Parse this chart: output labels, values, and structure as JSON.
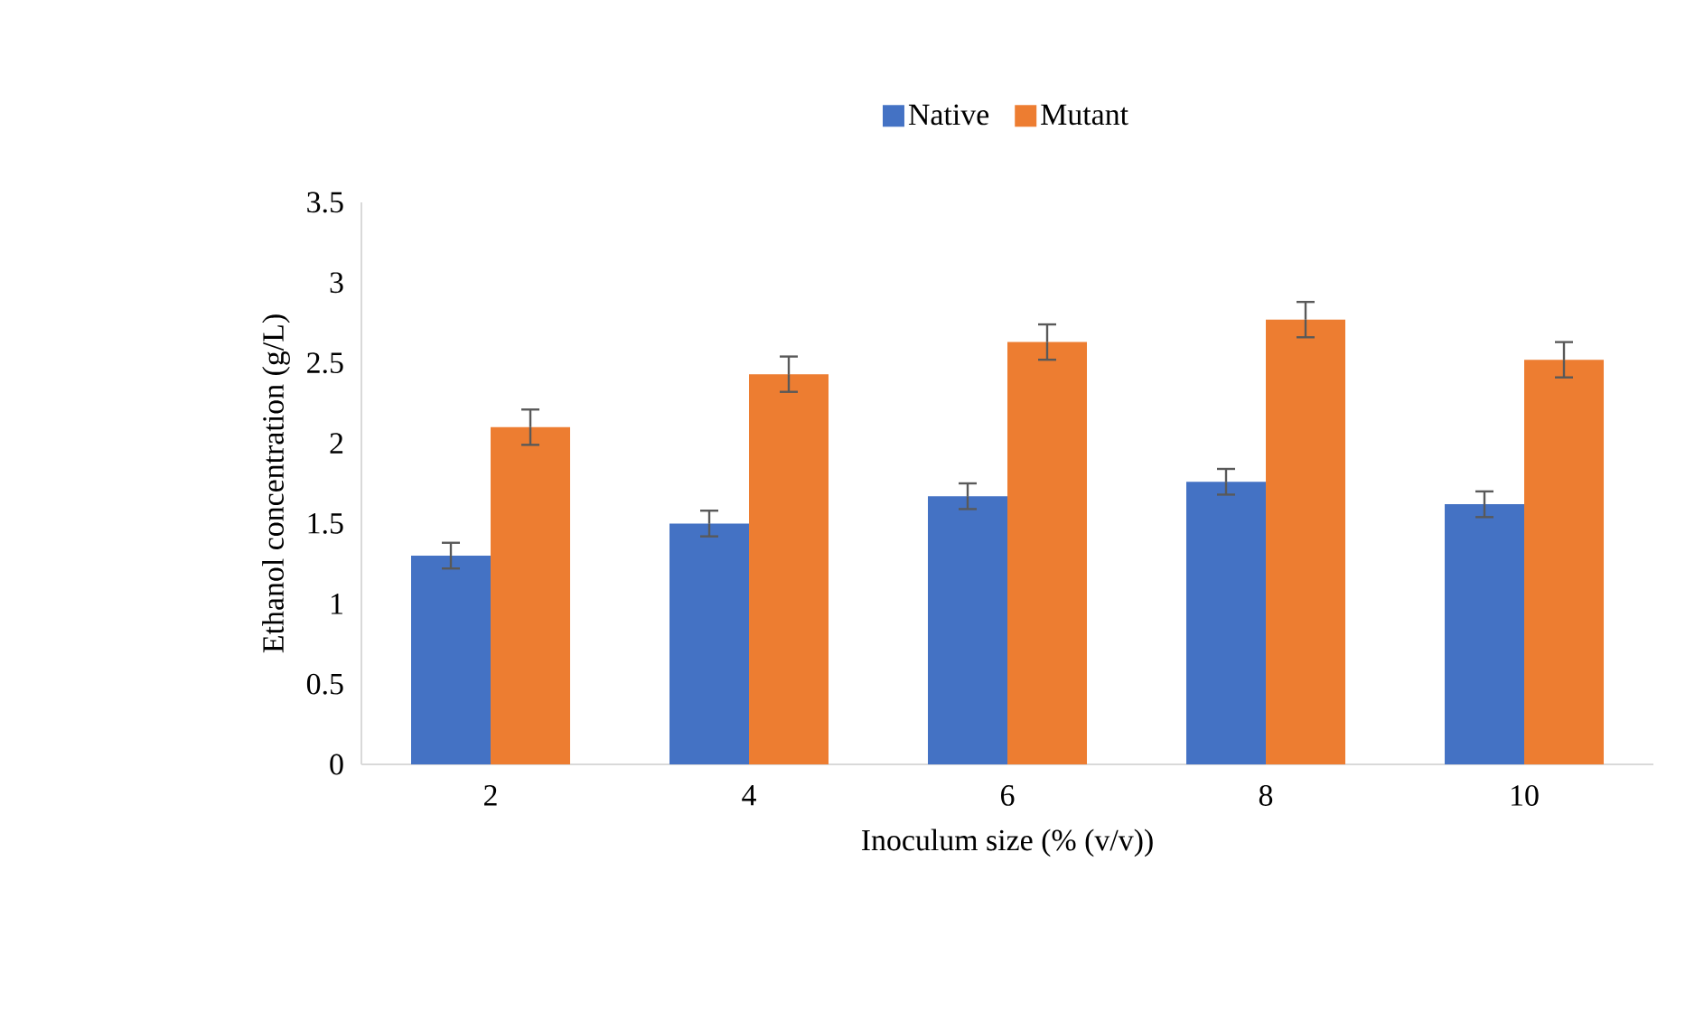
{
  "chart_data": {
    "type": "bar",
    "xlabel": "Inoculum size (% (v/v))",
    "ylabel": "Ethanol concentration (g/L)",
    "categories": [
      "2",
      "4",
      "6",
      "8",
      "10"
    ],
    "series": [
      {
        "name": "Native",
        "color": "#4472c4",
        "values": [
          1.3,
          1.5,
          1.67,
          1.76,
          1.62
        ],
        "errors": [
          0.08,
          0.08,
          0.08,
          0.08,
          0.08
        ]
      },
      {
        "name": "Mutant",
        "color": "#ed7d31",
        "values": [
          2.1,
          2.43,
          2.63,
          2.77,
          2.52
        ],
        "errors": [
          0.11,
          0.11,
          0.11,
          0.11,
          0.11
        ]
      }
    ],
    "ylim": [
      0,
      3.5
    ],
    "yticks": [
      0,
      0.5,
      1,
      1.5,
      2,
      2.5,
      3,
      3.5
    ],
    "legend": "top",
    "grid": false
  }
}
